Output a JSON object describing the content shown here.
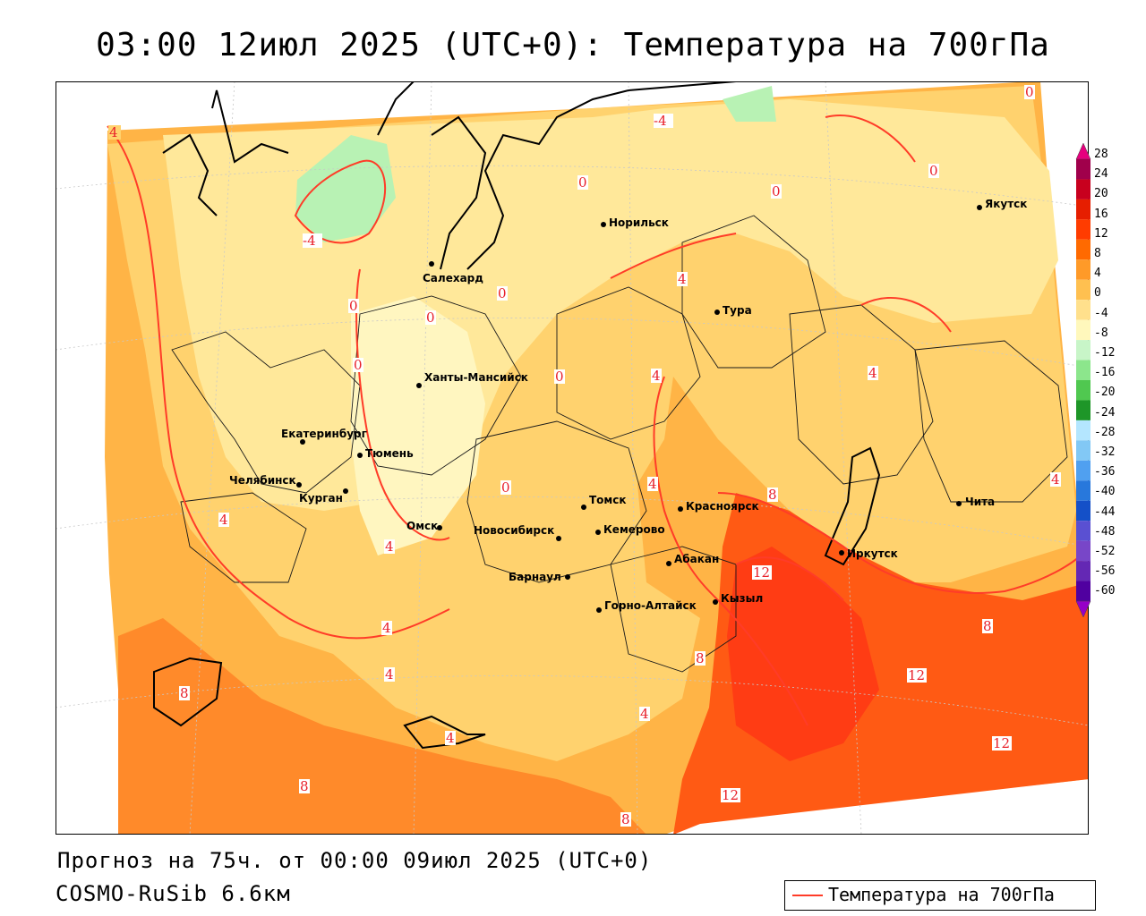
{
  "title": "03:00 12июл 2025 (UTC+0): Температура на 700гПа",
  "footer": {
    "forecast": "Прогноз на 75ч. от 00:00 09июл 2025 (UTC+0)",
    "model": "COSMO-RuSib 6.6км"
  },
  "legend": {
    "label": "Температура на 700гПа",
    "line_color": "#ff3c28"
  },
  "scale": {
    "ticks": [
      "28",
      "24",
      "20",
      "16",
      "12",
      "8",
      "4",
      "0",
      "-4",
      "-8",
      "-12",
      "-16",
      "-20",
      "-24",
      "-28",
      "-32",
      "-36",
      "-40",
      "-44",
      "-48",
      "-52",
      "-56",
      "-60"
    ],
    "colors": [
      "#a0004b",
      "#c8001e",
      "#e61e00",
      "#ff3c00",
      "#ff6a00",
      "#ff9a28",
      "#ffc050",
      "#ffe08c",
      "#fff8bc",
      "#c8f5c8",
      "#8ce68c",
      "#50c850",
      "#1e9628",
      "#b4e6ff",
      "#82c8f5",
      "#50a0f0",
      "#2878dc",
      "#1450c8",
      "#5a50d2",
      "#7846c8",
      "#6428b4",
      "#5000a0"
    ]
  },
  "cities": [
    {
      "name": "Якутск"
    },
    {
      "name": "Норильск"
    },
    {
      "name": "Салехард"
    },
    {
      "name": "Тура"
    },
    {
      "name": "Ханты-Мансийск"
    },
    {
      "name": "Екатеринбург"
    },
    {
      "name": "Тюмень"
    },
    {
      "name": "Челябинск"
    },
    {
      "name": "Курган"
    },
    {
      "name": "Омск"
    },
    {
      "name": "Новосибирск"
    },
    {
      "name": "Томск"
    },
    {
      "name": "Кемерово"
    },
    {
      "name": "Красноярск"
    },
    {
      "name": "Барнаул"
    },
    {
      "name": "Абакан"
    },
    {
      "name": "Горно-Алтайск"
    },
    {
      "name": "Кызыл"
    },
    {
      "name": "Иркутск"
    },
    {
      "name": "Чита"
    }
  ],
  "contour_labels": [
    "4",
    "-4",
    "-4",
    "0",
    "0",
    "0",
    "0",
    "0",
    "0",
    "0",
    "0",
    "0",
    "0",
    "4",
    "4",
    "4",
    "4",
    "4",
    "4",
    "4",
    "4",
    "4",
    "4",
    "4",
    "8",
    "8",
    "8",
    "8",
    "8",
    "8",
    "12",
    "12",
    "12",
    "12"
  ]
}
